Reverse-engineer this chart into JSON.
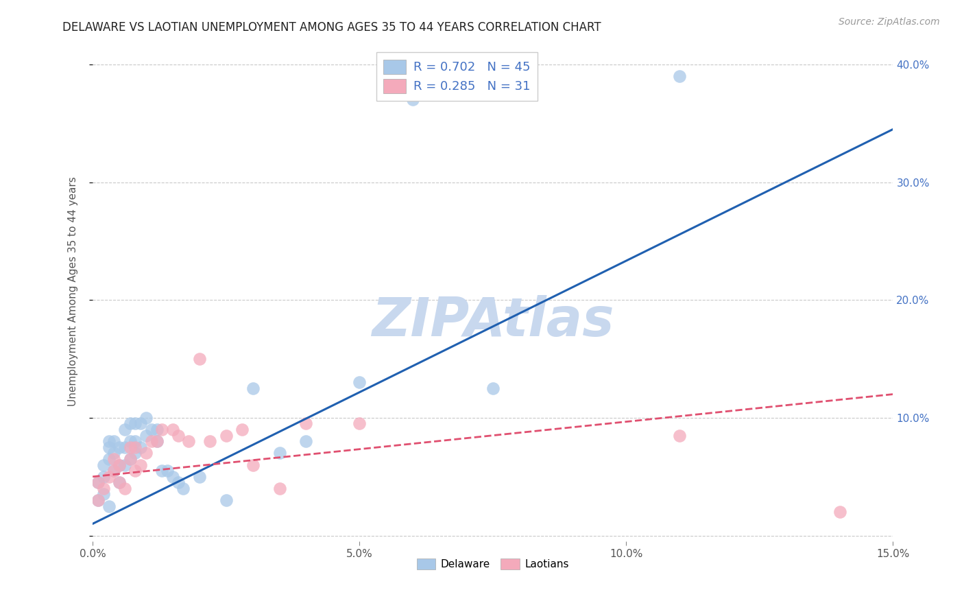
{
  "title": "DELAWARE VS LAOTIAN UNEMPLOYMENT AMONG AGES 35 TO 44 YEARS CORRELATION CHART",
  "source": "Source: ZipAtlas.com",
  "ylabel": "Unemployment Among Ages 35 to 44 years",
  "xlim": [
    0.0,
    0.15
  ],
  "ylim": [
    -0.005,
    0.42
  ],
  "xticks": [
    0.0,
    0.05,
    0.1,
    0.15
  ],
  "yticks": [
    0.0,
    0.1,
    0.2,
    0.3,
    0.4
  ],
  "xtick_labels": [
    "0.0%",
    "5.0%",
    "10.0%",
    "15.0%"
  ],
  "ytick_labels": [
    "",
    "10.0%",
    "20.0%",
    "30.0%",
    "40.0%"
  ],
  "delaware_color": "#A8C8E8",
  "laotian_color": "#F4AABB",
  "delaware_line_color": "#2060B0",
  "laotian_line_color": "#E05070",
  "background_color": "#FFFFFF",
  "grid_color": "#BBBBBB",
  "watermark": "ZIPAtlas",
  "watermark_color": "#C8D8EE",
  "delaware_r": 0.702,
  "delaware_n": 45,
  "laotian_r": 0.285,
  "laotian_n": 31,
  "delaware_x": [
    0.001,
    0.001,
    0.002,
    0.002,
    0.002,
    0.003,
    0.003,
    0.003,
    0.003,
    0.004,
    0.004,
    0.004,
    0.005,
    0.005,
    0.005,
    0.006,
    0.006,
    0.006,
    0.007,
    0.007,
    0.007,
    0.008,
    0.008,
    0.008,
    0.009,
    0.009,
    0.01,
    0.01,
    0.011,
    0.012,
    0.012,
    0.013,
    0.014,
    0.015,
    0.016,
    0.017,
    0.02,
    0.025,
    0.03,
    0.035,
    0.04,
    0.05,
    0.06,
    0.075,
    0.11
  ],
  "delaware_y": [
    0.03,
    0.045,
    0.035,
    0.05,
    0.06,
    0.025,
    0.065,
    0.075,
    0.08,
    0.055,
    0.07,
    0.08,
    0.045,
    0.06,
    0.075,
    0.06,
    0.075,
    0.09,
    0.065,
    0.08,
    0.095,
    0.07,
    0.08,
    0.095,
    0.075,
    0.095,
    0.085,
    0.1,
    0.09,
    0.08,
    0.09,
    0.055,
    0.055,
    0.05,
    0.045,
    0.04,
    0.05,
    0.03,
    0.125,
    0.07,
    0.08,
    0.13,
    0.37,
    0.125,
    0.39
  ],
  "laotian_x": [
    0.001,
    0.001,
    0.002,
    0.003,
    0.004,
    0.004,
    0.005,
    0.005,
    0.006,
    0.007,
    0.007,
    0.008,
    0.008,
    0.009,
    0.01,
    0.011,
    0.012,
    0.013,
    0.015,
    0.016,
    0.018,
    0.02,
    0.022,
    0.025,
    0.028,
    0.03,
    0.035,
    0.04,
    0.05,
    0.11,
    0.14
  ],
  "laotian_y": [
    0.03,
    0.045,
    0.04,
    0.05,
    0.055,
    0.065,
    0.045,
    0.06,
    0.04,
    0.065,
    0.075,
    0.055,
    0.075,
    0.06,
    0.07,
    0.08,
    0.08,
    0.09,
    0.09,
    0.085,
    0.08,
    0.15,
    0.08,
    0.085,
    0.09,
    0.06,
    0.04,
    0.095,
    0.095,
    0.085,
    0.02
  ],
  "delaware_line_x": [
    0.0,
    0.15
  ],
  "delaware_line_y": [
    0.01,
    0.345
  ],
  "laotian_line_x": [
    0.0,
    0.15
  ],
  "laotian_line_y": [
    0.05,
    0.12
  ]
}
